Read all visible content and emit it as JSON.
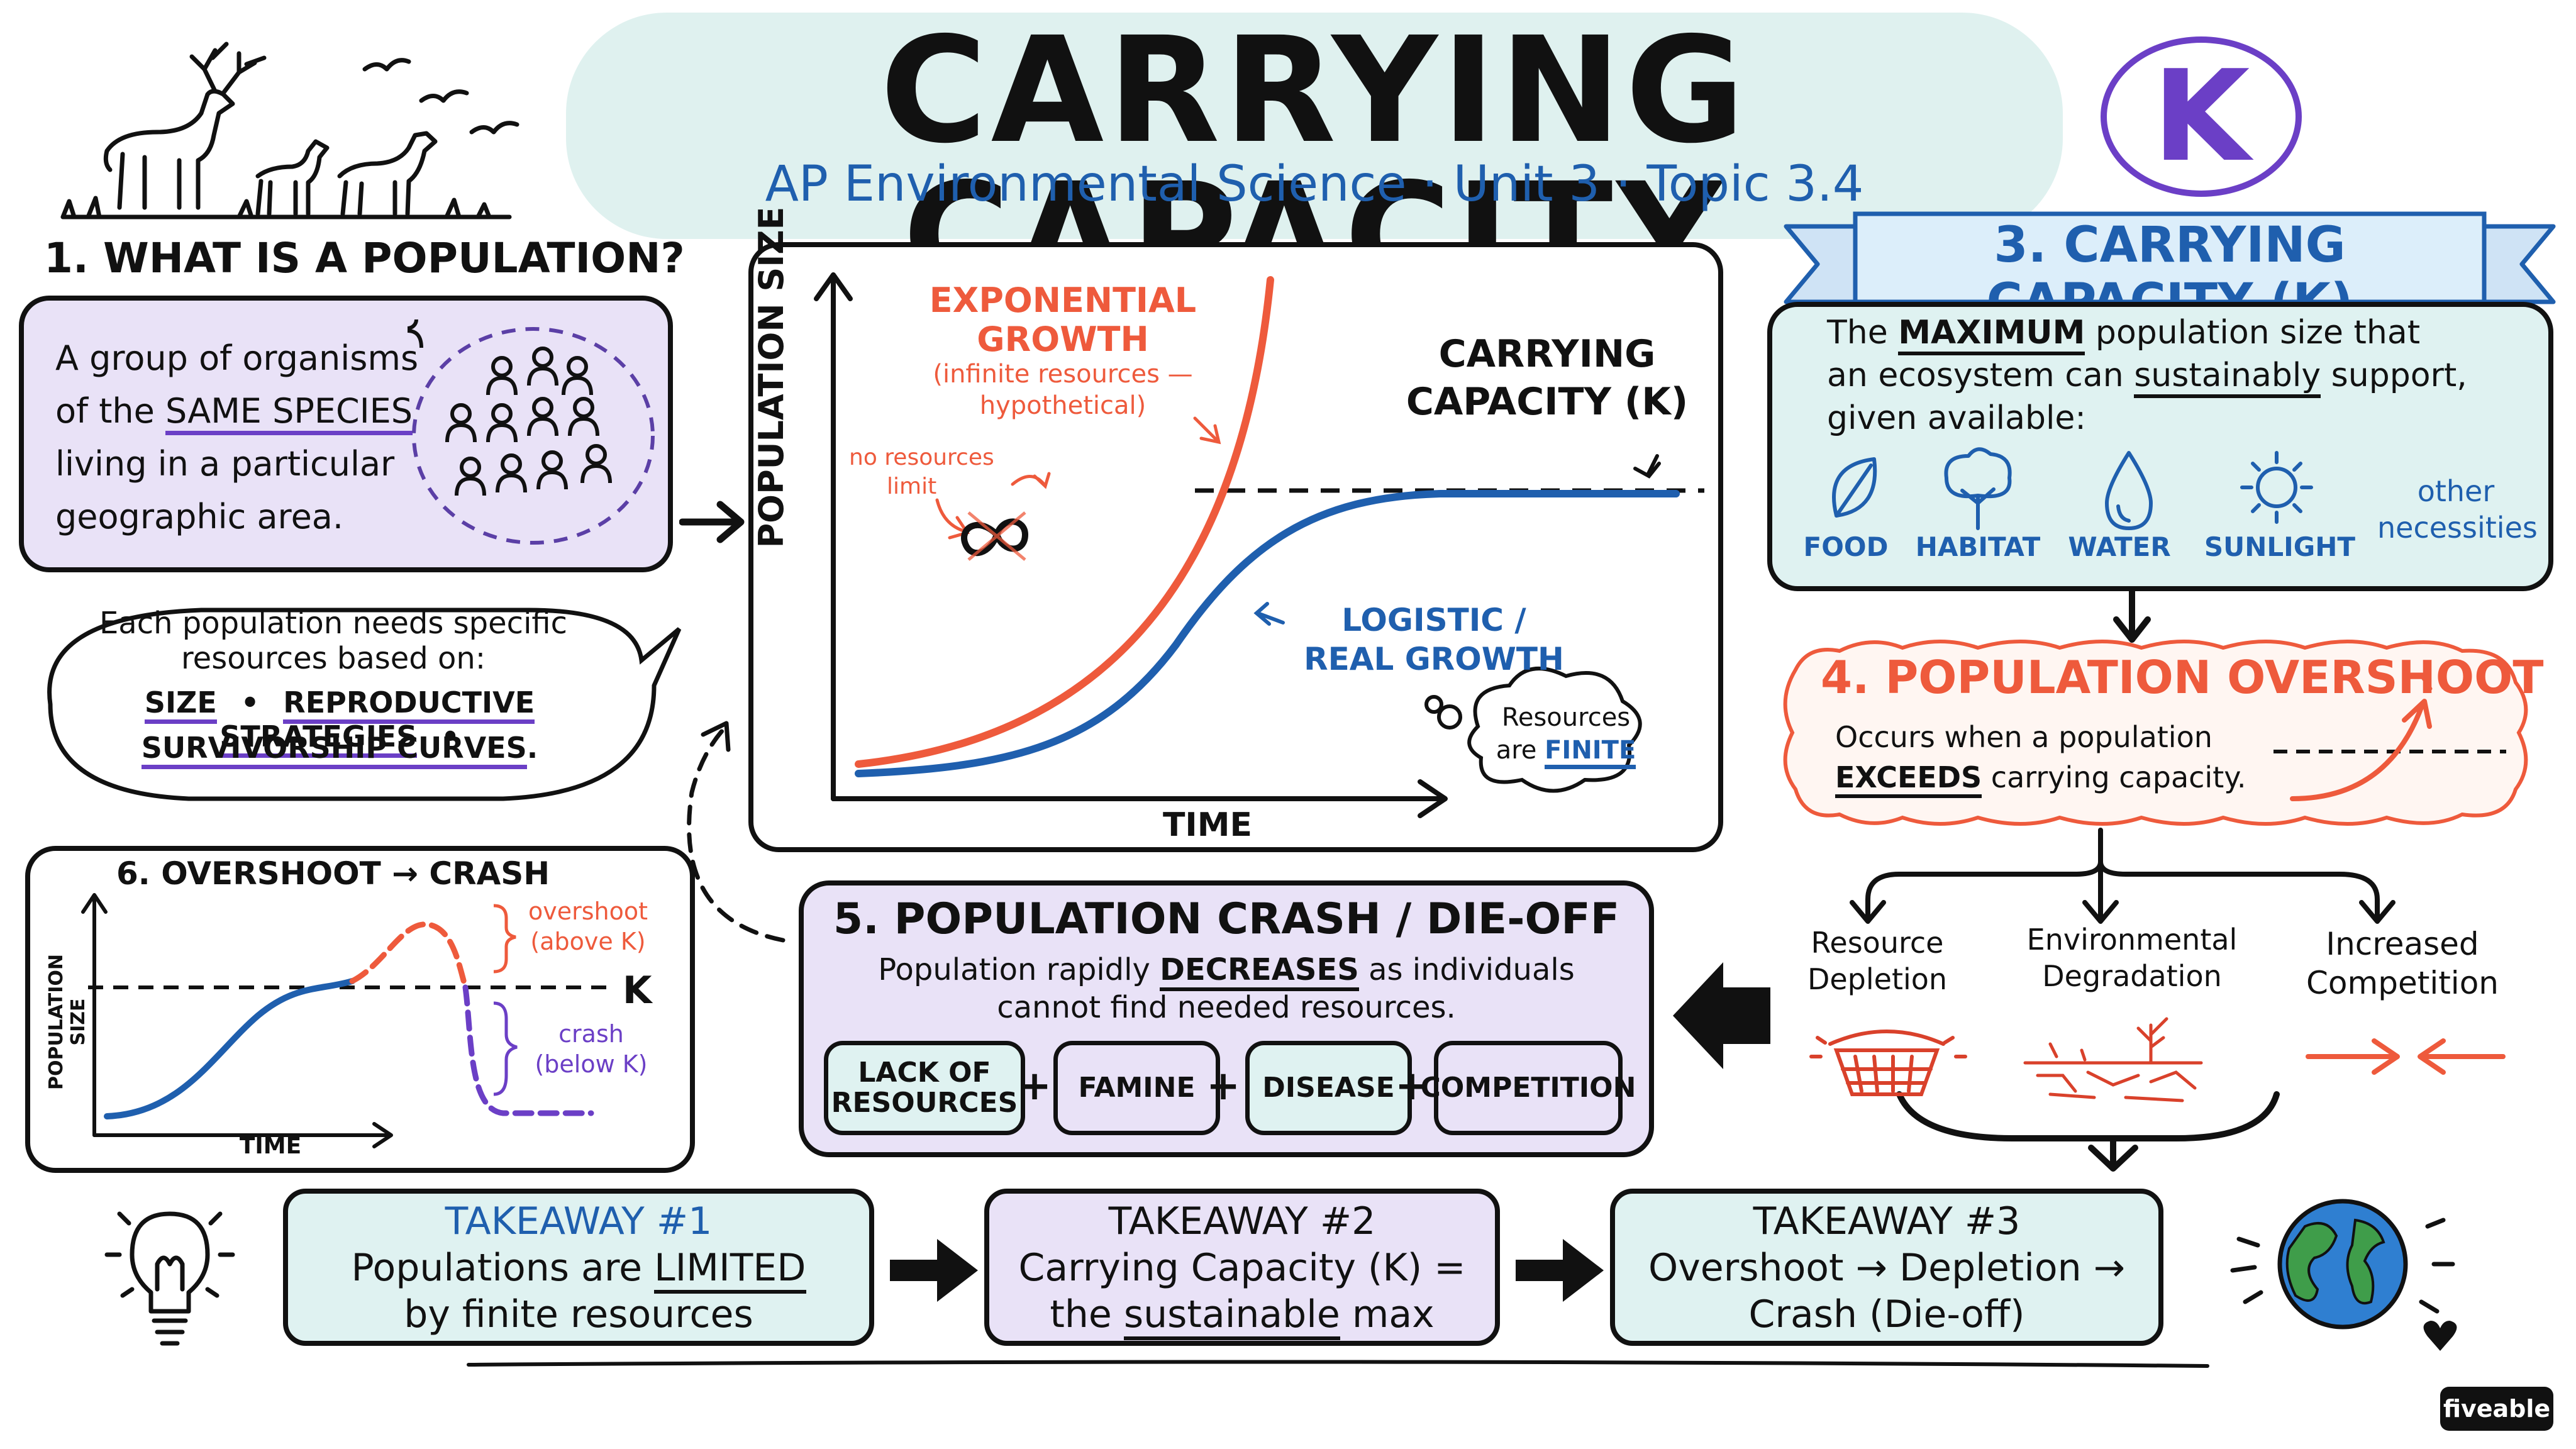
{
  "header": {
    "title": "CARRYING CAPACITY",
    "subtitle": "AP Environmental Science · Unit 3 · Topic 3.4",
    "k_badge": "K",
    "badge_color": "#6b3fc6"
  },
  "section1": {
    "heading": "1. WHAT IS A POPULATION?",
    "def_line1": "A group of organisms",
    "def_line2_pre": "of the ",
    "def_line2_em": "SAME SPECIES",
    "def_line3": "living in a particular",
    "def_line4": "geographic area.",
    "needs_line1": "Each population needs specific",
    "needs_line2": "resources based on:",
    "factor_size": "SIZE",
    "factor_repro": "REPRODUCTIVE STRATEGIES",
    "factor_surv": "SURVIVORSHIP CURVES",
    "dot": "•",
    "period": "."
  },
  "main_graph": {
    "ylabel": "POPULATION SIZE",
    "xlabel": "TIME",
    "exp_label1": "EXPONENTIAL",
    "exp_label2": "GROWTH",
    "exp_note1": "(infinite resources —",
    "exp_note2": "hypothetical)",
    "no_limit1": "no resources",
    "no_limit2": "limit",
    "k_label1": "CARRYING",
    "k_label2": "CAPACITY (K)",
    "log_label1": "LOGISTIC /",
    "log_label2": "REAL GROWTH",
    "thought1": "Resources",
    "thought2_pre": "are ",
    "thought2_em": "FINITE",
    "exp_color": "#ee5a3c",
    "log_color": "#1f5fae"
  },
  "section3": {
    "heading": "3. CARRYING CAPACITY (K)",
    "line1_pre": "The ",
    "line1_em": "MAXIMUM",
    "line1_post": " population size that",
    "line2_pre": "an ecosystem can ",
    "line2_em": "sustainably",
    "line2_post": " support,",
    "line3": "given available:",
    "resources": [
      {
        "label": "FOOD",
        "icon": "leaf-icon"
      },
      {
        "label": "HABITAT",
        "icon": "tree-icon"
      },
      {
        "label": "WATER",
        "icon": "water-drop-icon"
      },
      {
        "label": "SUNLIGHT",
        "icon": "sun-icon"
      }
    ],
    "other1": "other",
    "other2": "necessities"
  },
  "section4": {
    "heading": "4. POPULATION OVERSHOOT",
    "line1": "Occurs when a population",
    "line2_em": "EXCEEDS",
    "line2_post": " carrying capacity.",
    "causes": [
      {
        "line1": "Resource",
        "line2": "Depletion",
        "icon": "empty-basket-icon"
      },
      {
        "line1": "Environmental",
        "line2": "Degradation",
        "icon": "cracked-earth-icon"
      },
      {
        "line1": "Increased",
        "line2": "Competition",
        "icon": "opposing-arrows-icon"
      }
    ]
  },
  "section5": {
    "heading": "5. POPULATION CRASH / DIE-OFF",
    "line1_pre": "Population rapidly ",
    "line1_em": "DECREASES",
    "line1_post": " as individuals",
    "line2": "cannot find needed resources.",
    "chips": [
      {
        "line1": "LACK OF",
        "line2": "RESOURCES"
      },
      {
        "line1": "FAMINE",
        "line2": ""
      },
      {
        "line1": "DISEASE",
        "line2": ""
      },
      {
        "line1": "COMPETITION",
        "line2": ""
      }
    ],
    "plus": "+"
  },
  "section6": {
    "heading": "6. OVERSHOOT → CRASH",
    "ylabel": "POPULATION SIZE",
    "xlabel": "TIME",
    "k": "K",
    "overshoot1": "overshoot",
    "overshoot2": "(above K)",
    "crash1": "crash",
    "crash2": "(below K)"
  },
  "takeaways": [
    {
      "title": "TAKEAWAY #1",
      "line1_pre": "Populations are ",
      "line1_em": "LIMITED",
      "line2_pre": "by finite resources",
      "line2_em": ""
    },
    {
      "title": "TAKEAWAY #2",
      "line1_pre": "Carrying Capacity (K) =",
      "line1_em": "",
      "line2_pre": "the ",
      "line2_em": "sustainable",
      "line2_post": " max"
    },
    {
      "title": "TAKEAWAY #3",
      "line1_pre": "Overshoot → Depletion →",
      "line1_em": "",
      "line2_pre": "Crash (Die-off)",
      "line2_em": ""
    }
  ],
  "brand": "fiveable"
}
